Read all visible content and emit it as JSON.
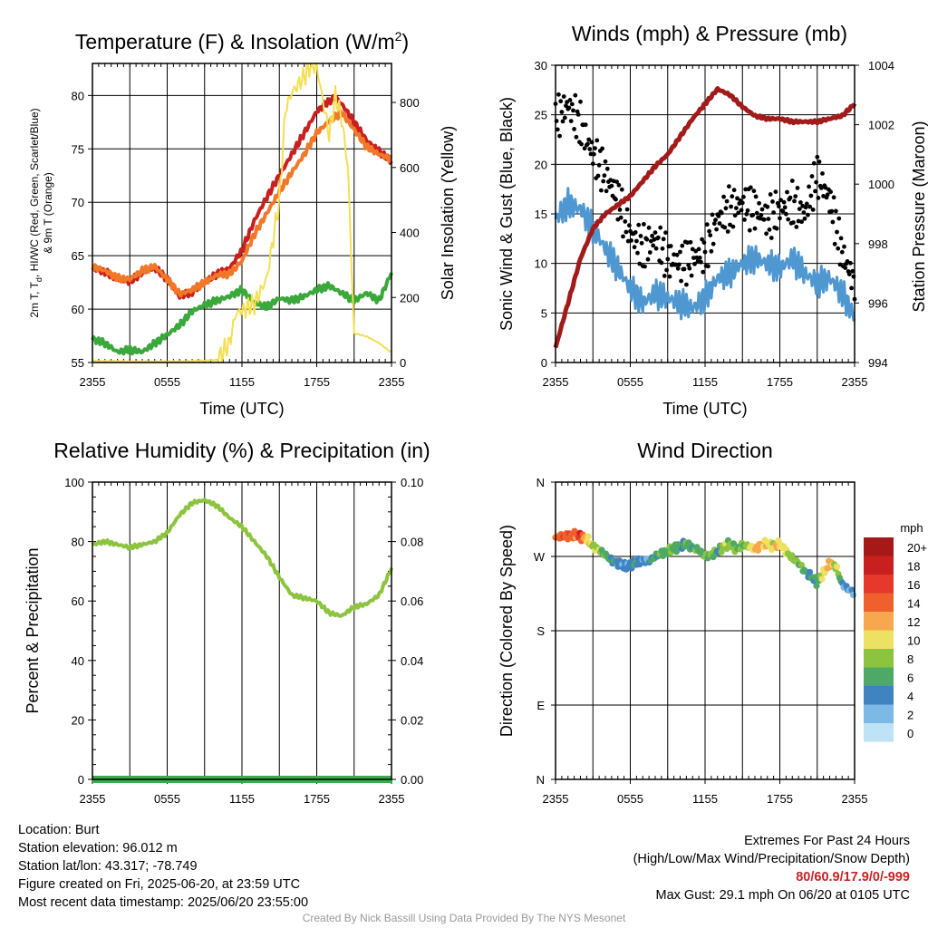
{
  "chart_data": [
    {
      "type": "line",
      "title_main": "Temperature (F) & Insolation (W/m",
      "title_sup": "2",
      "title_end": ")",
      "xlabel": "Time (UTC)",
      "ylabel_lines": [
        "2m T, T",
        "d",
        ", HI/WC (Red, Green, Scarlet/Blue)",
        "& 9m T (Orange)"
      ],
      "y2label": "Solar Insolation (Yellow)",
      "x_ticks": [
        "2355",
        "0555",
        "1155",
        "1755",
        "2355"
      ],
      "x_range_hours": [
        0,
        24
      ],
      "ylim": [
        55,
        83
      ],
      "y_ticks": [
        55,
        60,
        65,
        70,
        75,
        80
      ],
      "y2lim": [
        0,
        920
      ],
      "y2_ticks": [
        0,
        200,
        400,
        600,
        800
      ],
      "series": [
        {
          "color": "#c8201e",
          "axis": "left",
          "x": [
            0,
            1,
            2,
            3,
            4,
            5,
            6,
            7,
            8,
            9,
            10,
            11,
            12,
            13,
            14,
            15,
            16,
            17,
            18,
            19,
            19.5,
            20,
            21,
            22,
            23,
            24
          ],
          "values": [
            63.8,
            63.5,
            62.8,
            62.6,
            63.4,
            63.9,
            62.8,
            61.2,
            61.6,
            62.5,
            63.3,
            63.8,
            65.5,
            68.3,
            70.5,
            72.5,
            74.5,
            76.5,
            78.5,
            79.5,
            79.8,
            79.2,
            77.5,
            75.8,
            74.8,
            73.8
          ]
        },
        {
          "color": "#f07828",
          "axis": "left",
          "x": [
            0,
            1,
            2,
            3,
            4,
            5,
            6,
            7,
            8,
            9,
            10,
            11,
            12,
            13,
            14,
            15,
            16,
            17,
            18,
            19,
            20,
            21,
            22,
            23,
            24
          ],
          "values": [
            64.0,
            63.6,
            62.9,
            62.8,
            63.6,
            64.0,
            62.8,
            61.4,
            61.8,
            62.5,
            63.2,
            63.3,
            64.5,
            67.0,
            69.0,
            71.0,
            72.8,
            74.5,
            76.5,
            77.6,
            78.4,
            76.8,
            75.2,
            74.5,
            74.0
          ]
        },
        {
          "color": "#3aa83a",
          "axis": "left",
          "x": [
            0,
            1,
            2,
            3,
            4,
            5,
            6,
            7,
            8,
            9,
            10,
            11,
            12,
            13,
            14,
            15,
            16,
            17,
            18,
            19,
            20,
            21,
            22,
            23,
            24
          ],
          "values": [
            57.2,
            56.8,
            56.0,
            56.2,
            56.0,
            56.8,
            57.6,
            58.5,
            59.8,
            60.4,
            60.8,
            61.2,
            61.8,
            60.6,
            60.2,
            61.0,
            60.8,
            61.2,
            61.8,
            62.2,
            61.5,
            60.8,
            61.5,
            60.8,
            63.4
          ]
        },
        {
          "color": "#f4df52",
          "axis": "right",
          "x": [
            0,
            2,
            4,
            6,
            8,
            10,
            11,
            11.5,
            12,
            13,
            14,
            15,
            15.5,
            16,
            17,
            17.5,
            18,
            19,
            19.5,
            20,
            20.5,
            21,
            22,
            23,
            24
          ],
          "values": [
            5,
            4,
            3,
            3,
            4,
            8,
            60,
            150,
            160,
            180,
            260,
            500,
            780,
            830,
            880,
            915,
            910,
            700,
            820,
            750,
            600,
            90,
            80,
            60,
            30
          ]
        }
      ]
    },
    {
      "type": "scatter",
      "title": "Winds (mph) & Pressure (mb)",
      "xlabel": "Time (UTC)",
      "ylabel": "Sonic Wind & Gust (Blue, Black)",
      "y2label": "Station Pressure (Maroon)",
      "x_ticks": [
        "2355",
        "0555",
        "1155",
        "1755",
        "2355"
      ],
      "x_range_hours": [
        0,
        24
      ],
      "ylim": [
        0,
        30
      ],
      "y_ticks": [
        0,
        5,
        10,
        15,
        20,
        25,
        30
      ],
      "y2lim": [
        994,
        1004
      ],
      "y2_ticks": [
        994,
        996,
        998,
        1000,
        1002,
        1004
      ],
      "series": [
        {
          "name_hidden": "wind",
          "color": "#4f97d0",
          "x": [
            0,
            1,
            2,
            3,
            4,
            5,
            6,
            7,
            8,
            9,
            10,
            11,
            12,
            13,
            14,
            15,
            16,
            17,
            18,
            19,
            20,
            21,
            22,
            23,
            24
          ],
          "values": [
            14.5,
            16.0,
            15.5,
            13.5,
            11.5,
            9.5,
            7.5,
            6.0,
            7.0,
            6.5,
            6.0,
            5.5,
            6.5,
            8.5,
            9.0,
            10.0,
            10.5,
            10.0,
            9.5,
            10.5,
            9.0,
            8.0,
            8.5,
            7.0,
            4.5
          ]
        },
        {
          "name_hidden": "gust",
          "color": "#000000",
          "x": [
            0,
            1,
            2,
            3,
            4,
            5,
            6,
            7,
            8,
            9,
            10,
            11,
            12,
            13,
            14,
            15,
            16,
            17,
            18,
            19,
            20,
            21,
            22,
            23,
            24
          ],
          "values": [
            24.5,
            26.0,
            24.0,
            21.0,
            19.0,
            16.5,
            13.0,
            11.5,
            12.5,
            10.5,
            10.0,
            10.5,
            11.0,
            14.5,
            15.5,
            16.0,
            15.5,
            14.5,
            15.5,
            16.0,
            15.0,
            19.0,
            16.5,
            11.0,
            8.0
          ]
        },
        {
          "name_hidden": "pressure",
          "color": "#a11b1b",
          "axis": "right",
          "x": [
            0,
            1,
            2,
            3,
            4,
            5,
            6,
            7,
            8,
            9,
            10,
            11,
            12,
            13,
            14,
            15,
            16,
            17,
            18,
            19,
            20,
            21,
            22,
            23,
            24
          ],
          "values": [
            994.5,
            996.0,
            997.5,
            998.5,
            999.0,
            999.3,
            999.6,
            1000.1,
            1000.6,
            1001.0,
            1001.6,
            1002.2,
            1002.7,
            1003.2,
            1003.0,
            1002.6,
            1002.3,
            1002.2,
            1002.2,
            1002.1,
            1002.1,
            1002.1,
            1002.2,
            1002.3,
            1002.7
          ]
        }
      ]
    },
    {
      "type": "line",
      "title": "Relative Humidity (%) & Precipitation (in)",
      "xlabel": "",
      "ylabel": "Percent & Precipitation",
      "x_ticks": [
        "2355",
        "0555",
        "1155",
        "1755",
        "2355"
      ],
      "x_range_hours": [
        0,
        24
      ],
      "ylim": [
        0,
        100
      ],
      "y_ticks": [
        0,
        20,
        40,
        60,
        80,
        100
      ],
      "y2lim": [
        0,
        0.1
      ],
      "y2_ticks": [
        "0.00",
        "0.02",
        "0.04",
        "0.06",
        "0.08",
        "0.10"
      ],
      "series": [
        {
          "color": "#8cc43f",
          "x": [
            0,
            1,
            2,
            3,
            4,
            5,
            6,
            7,
            8,
            9,
            10,
            11,
            12,
            13,
            14,
            15,
            16,
            17,
            18,
            19,
            20,
            21,
            22,
            23,
            24
          ],
          "values": [
            79,
            80,
            79,
            78,
            79,
            80,
            83,
            89,
            93,
            94,
            92,
            88,
            85,
            80,
            75,
            68,
            62,
            61,
            60,
            56,
            55,
            58,
            59,
            62,
            71
          ]
        },
        {
          "color": "#3fa848",
          "x": [
            0,
            24
          ],
          "values": [
            0,
            0
          ]
        }
      ]
    },
    {
      "type": "scatter",
      "title": "Wind Direction",
      "xlabel": "",
      "ylabel": "Direction (Colored By Speed)",
      "x_ticks": [
        "2355",
        "0555",
        "1155",
        "1755",
        "2355"
      ],
      "x_range_hours": [
        0,
        24
      ],
      "y_ticks": [
        "N",
        "W",
        "S",
        "E",
        "N"
      ],
      "ylim_deg": [
        0,
        360
      ],
      "points_hours": [
        0,
        0.5,
        1,
        1.5,
        2,
        2.5,
        3,
        3.5,
        4,
        4.5,
        5,
        5.5,
        6,
        6.5,
        7,
        7.5,
        8,
        8.5,
        9,
        9.5,
        10,
        10.5,
        11,
        11.5,
        12,
        12.5,
        13,
        13.5,
        14,
        14.5,
        15,
        15.5,
        16,
        16.5,
        17,
        17.5,
        18,
        18.5,
        19,
        19.5,
        20,
        20.5,
        21,
        21.5,
        22,
        22.5,
        23,
        23.5,
        24
      ],
      "points_deg": [
        293,
        294,
        295,
        296,
        294,
        292,
        282,
        278,
        272,
        265,
        262,
        258,
        260,
        262,
        266,
        264,
        270,
        274,
        276,
        280,
        282,
        286,
        280,
        278,
        270,
        272,
        276,
        282,
        286,
        278,
        284,
        282,
        278,
        284,
        286,
        282,
        285,
        276,
        268,
        262,
        252,
        246,
        238,
        250,
        262,
        258,
        236,
        230,
        226
      ],
      "points_mph": [
        14,
        14,
        15,
        13,
        16,
        10,
        9,
        8,
        6,
        5,
        4,
        3,
        4,
        5,
        3,
        4,
        6,
        6,
        7,
        6,
        5,
        7,
        6,
        6,
        6,
        8,
        5,
        9,
        7,
        8,
        6,
        8,
        11,
        12,
        10,
        10,
        11,
        9,
        8,
        7,
        6,
        5,
        6,
        10,
        12,
        9,
        4,
        3,
        3
      ],
      "legend_title": "mph",
      "legend_labels": [
        "20+",
        "18",
        "16",
        "14",
        "12",
        "10",
        "8",
        "6",
        "4",
        "2",
        "0"
      ],
      "legend_colors": [
        "#a51919",
        "#c8201e",
        "#e6382b",
        "#f0602c",
        "#f7a74d",
        "#ede163",
        "#8cc43f",
        "#4fa966",
        "#3f83c0",
        "#7cb9e4",
        "#bfe3f6"
      ]
    }
  ],
  "footer": {
    "location": "Location: Burt",
    "elevation": "Station elevation: 96.012 m",
    "latlon": "Station lat/lon: 43.317; -78.749",
    "created": "Figure created on Fri, 2025-06-20, at 23:59 UTC",
    "recent": "Most recent data timestamp: 2025/06/20 23:55:00",
    "extremes_title": "Extremes For Past 24 Hours",
    "extremes_sub": "(High/Low/Max Wind/Precipitation/Snow Depth)",
    "extremes_values": "80/60.9/17.9/0/-999",
    "max_gust": "Max Gust: 29.1 mph On 06/20 at 0105 UTC",
    "credit": "Created By Nick Bassill Using Data Provided By The NYS Mesonet"
  }
}
